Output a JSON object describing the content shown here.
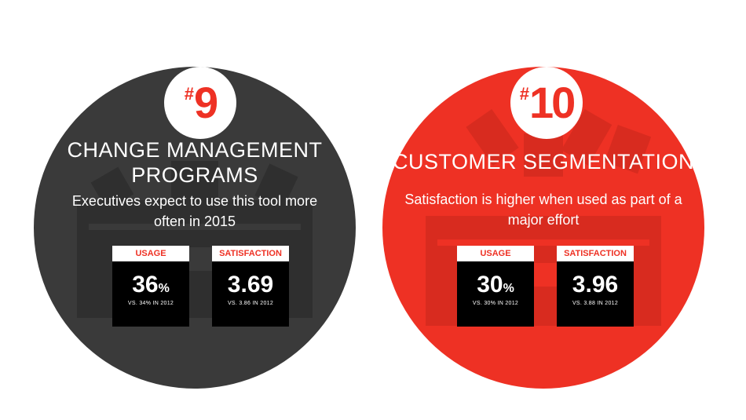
{
  "cards": [
    {
      "badge_hash": "#",
      "badge_number": "9",
      "title": "CHANGE MANAGEMENT PROGRAMS",
      "subtitle": "Executives expect to use this tool more often in 2015",
      "usage_label": "USAGE",
      "usage_value": "36",
      "usage_unit": "%",
      "usage_vs": "VS. 34% IN 2012",
      "satisfaction_label": "SATISFACTION",
      "satisfaction_value": "3.69",
      "satisfaction_vs": "VS. 3.86 IN 2012",
      "color": "#3a3a3a"
    },
    {
      "badge_hash": "#",
      "badge_number": "10",
      "title": "CUSTOMER SEGMENTATION",
      "subtitle": "Satisfaction is higher when used as part of a major effort",
      "usage_label": "USAGE",
      "usage_value": "30",
      "usage_unit": "%",
      "usage_vs": "VS. 30% IN 2012",
      "satisfaction_label": "SATISFACTION",
      "satisfaction_value": "3.96",
      "satisfaction_vs": "VS. 3.88 IN 2012",
      "color": "#ee3124"
    }
  ],
  "colors": {
    "accent": "#ee3124",
    "dark": "#3a3a3a",
    "box": "#000000"
  },
  "icons": [
    "toolbox-icon"
  ]
}
